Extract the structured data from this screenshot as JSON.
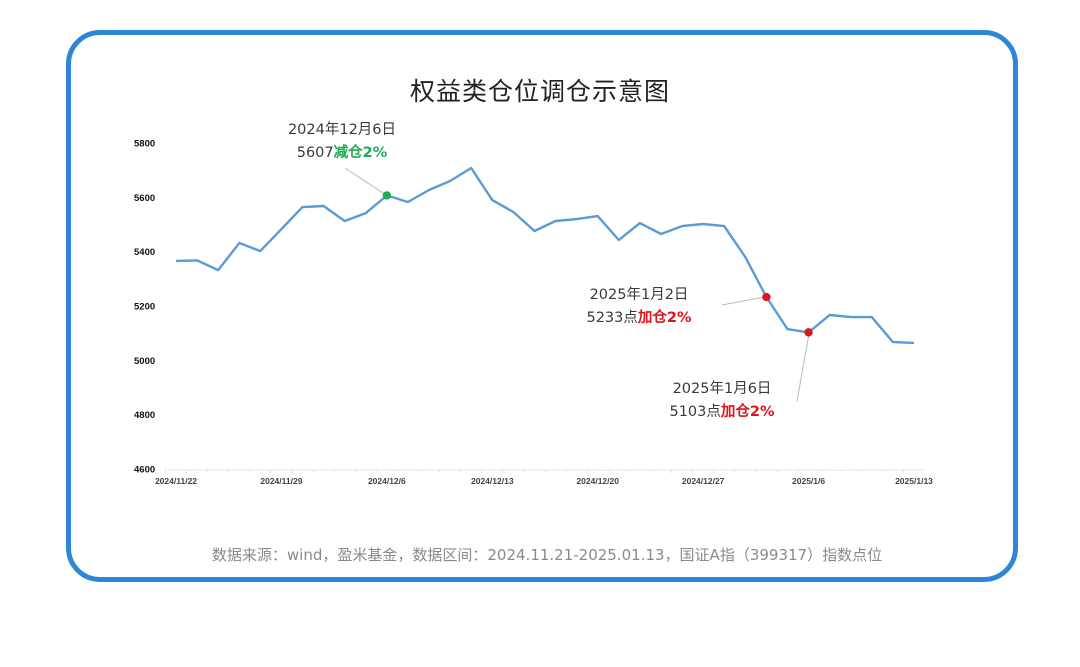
{
  "title": "权益类仓位调仓示意图",
  "source_note": "数据来源：wind，盈米基金，数据区间：2024.11.21-2025.01.13，国证A指（399317）指数点位",
  "colors": {
    "frame": "#2f86d6",
    "line": "#5b9bd5",
    "reduce": "#1faa55",
    "add": "#e0141c"
  },
  "annotations": [
    {
      "date": "2024年12月6日",
      "value_text": "5607",
      "action": "减仓2%",
      "type": "reduce"
    },
    {
      "date": "2025年1月2日",
      "value_text": "5233点",
      "action": "加仓2%",
      "type": "add"
    },
    {
      "date": "2025年1月6日",
      "value_text": "5103点",
      "action": "加仓2%",
      "type": "add"
    }
  ],
  "chart_data": {
    "type": "line",
    "title": "权益类仓位调仓示意图",
    "xlabel": "",
    "ylabel": "",
    "ylim": [
      4600,
      5800
    ],
    "yticks": [
      4600,
      4800,
      5000,
      5200,
      5400,
      5600,
      5800
    ],
    "xtick_labels": [
      "2024/11/22",
      "2024/11/29",
      "2024/12/6",
      "2024/12/13",
      "2024/12/20",
      "2024/12/27",
      "2025/1/6",
      "2025/1/13"
    ],
    "xtick_indices": [
      0,
      5,
      10,
      15,
      20,
      25,
      30,
      35
    ],
    "grid": false,
    "legend": null,
    "x": [
      "2024/11/22",
      "2024/11/25",
      "2024/11/26",
      "2024/11/27",
      "2024/11/28",
      "2024/11/29",
      "2024/12/2",
      "2024/12/3",
      "2024/12/4",
      "2024/12/5",
      "2024/12/6",
      "2024/12/9",
      "2024/12/10",
      "2024/12/11",
      "2024/12/12",
      "2024/12/13",
      "2024/12/16",
      "2024/12/17",
      "2024/12/18",
      "2024/12/19",
      "2024/12/20",
      "2024/12/23",
      "2024/12/24",
      "2024/12/25",
      "2024/12/26",
      "2024/12/27",
      "2024/12/30",
      "2024/12/31",
      "2025/1/2",
      "2025/1/3",
      "2025/1/6",
      "2025/1/7",
      "2025/1/8",
      "2025/1/9",
      "2025/1/10",
      "2025/1/13"
    ],
    "series": [
      {
        "name": "国证A指",
        "values": [
          5366,
          5368,
          5332,
          5432,
          5402,
          5483,
          5564,
          5568,
          5513,
          5542,
          5607,
          5583,
          5627,
          5660,
          5708,
          5590,
          5546,
          5476,
          5513,
          5520,
          5531,
          5443,
          5505,
          5465,
          5494,
          5502,
          5494,
          5380,
          5233,
          5115,
          5103,
          5167,
          5159,
          5159,
          5067,
          5064
        ]
      }
    ],
    "markers": [
      {
        "index": 10,
        "value": 5607,
        "label": "2024年12月6日 5607减仓2%",
        "color": "#1faa55"
      },
      {
        "index": 28,
        "value": 5233,
        "label": "2025年1月2日 5233点加仓2%",
        "color": "#e0141c"
      },
      {
        "index": 30,
        "value": 5103,
        "label": "2025年1月6日 5103点加仓2%",
        "color": "#e0141c"
      }
    ]
  }
}
